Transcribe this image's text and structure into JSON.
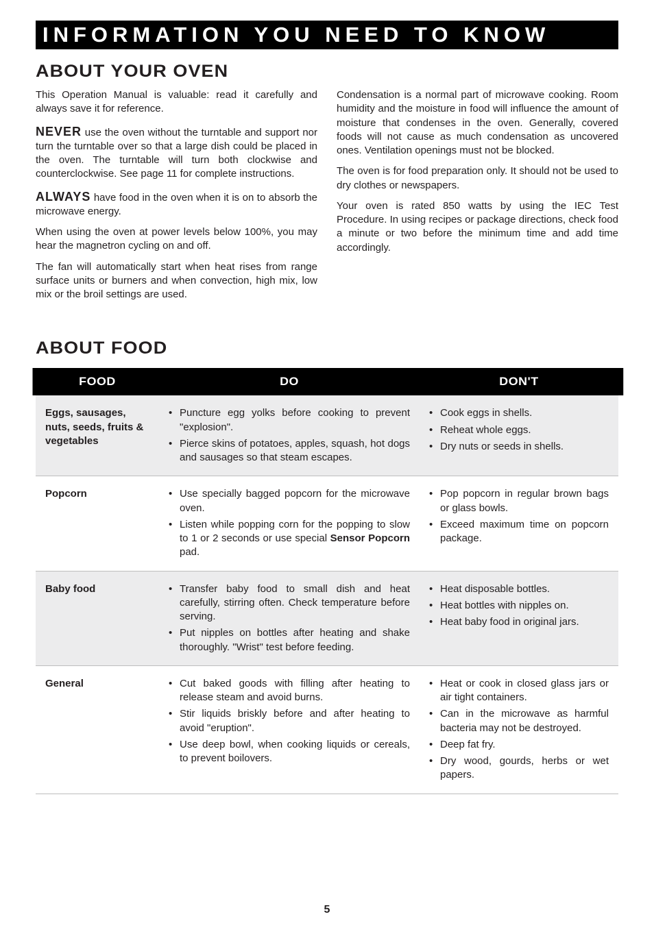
{
  "banner": "INFORMATION YOU NEED TO KNOW",
  "section_about_oven": "ABOUT YOUR OVEN",
  "section_about_food": "ABOUT FOOD",
  "kw_never": "NEVER",
  "kw_always": "ALWAYS",
  "leftcol": {
    "p1": "This Operation Manual is valuable: read it carefully and always save it for reference.",
    "p2": " use the oven without the turntable and support nor turn the turntable over so that a large dish could be placed in the oven. The turntable will turn both clockwise and counterclockwise. See page 11 for complete instructions.",
    "p3": " have food in the oven when it is on to absorb the microwave energy.",
    "p4": "When using the oven at power levels below 100%, you may hear the magnetron cycling on and off.",
    "p5": "The fan will automatically start when heat rises from range surface units or burners and when convection, high mix, low mix or the broil settings are used."
  },
  "rightcol": {
    "p1": "Condensation is a normal part of microwave cooking. Room humidity and the moisture in food will influence the amount of moisture that condenses in the oven. Generally, covered foods will not cause as much condensation as uncovered ones. Ventilation openings must not be blocked.",
    "p2": "The oven is for food preparation only. It should not be used to dry clothes or newspapers.",
    "p3": "Your oven is rated 850 watts by using the IEC Test Procedure. In using recipes or package directions, check food a minute or two before the minimum time and add time accordingly."
  },
  "table": {
    "headers": {
      "food": "FOOD",
      "do": "DO",
      "dont": "DON'T"
    },
    "rows": [
      {
        "food": "Eggs, sausages, nuts, seeds, fruits & vegetables",
        "do": [
          "Puncture egg yolks before cooking to prevent \"explosion\".",
          "Pierce skins of potatoes, apples, squash, hot dogs and sausages so that steam escapes."
        ],
        "dont": [
          "Cook eggs in shells.",
          "Reheat whole eggs.",
          "Dry nuts or seeds in shells."
        ]
      },
      {
        "food": "Popcorn",
        "do": [
          "Use specially bagged popcorn for the microwave oven.",
          "Listen while popping corn for the popping to slow to 1 or 2 seconds or use special <b>Sensor Popcorn</b> pad."
        ],
        "dont": [
          "Pop popcorn in regular brown bags or glass bowls.",
          "Exceed maximum time on popcorn package."
        ]
      },
      {
        "food": "Baby food",
        "do": [
          "Transfer baby food to small dish and heat carefully, stirring often. Check temperature before serving.",
          "Put nipples on bottles after heating and shake thoroughly. \"Wrist\" test before feeding."
        ],
        "dont": [
          "Heat disposable bottles.",
          "Heat bottles with nipples on.",
          "Heat baby food in original jars."
        ]
      },
      {
        "food": "General",
        "do": [
          "Cut baked goods with filling after heating to release steam and avoid burns.",
          "Stir liquids briskly before and after heating to avoid \"eruption\".",
          "Use deep bowl, when cooking liquids or cereals, to prevent boilovers."
        ],
        "dont": [
          "Heat or cook in closed glass jars or air tight containers.",
          "Can in the microwave as harmful bacteria may not be destroyed.",
          "Deep fat fry.",
          "Dry wood, gourds, herbs or wet papers."
        ]
      }
    ]
  },
  "page_number": "5"
}
